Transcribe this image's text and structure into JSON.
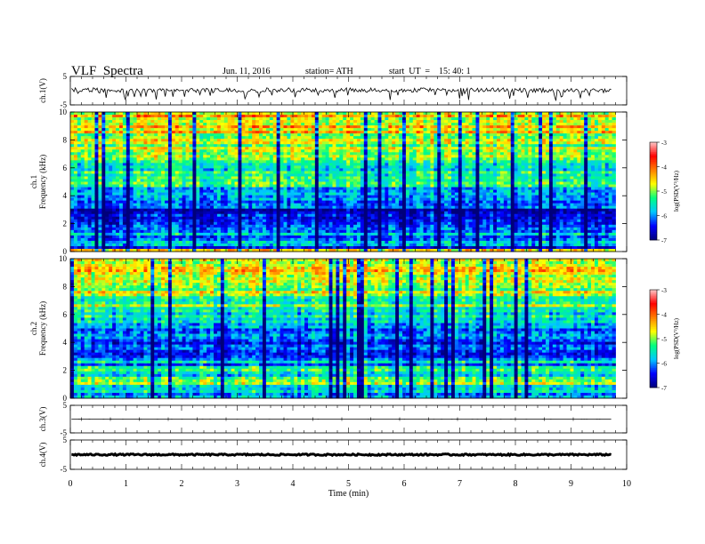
{
  "header": {
    "title": "VLF  Spectra",
    "date": "Jun. 11, 2016",
    "station": "station= ATH",
    "start": "start  UT  =    15: 40: 1"
  },
  "chart_data": {
    "type": "heatmap",
    "title": "VLF  Spectra",
    "xlabel": "Time  (min)",
    "xlim": [
      0,
      10
    ],
    "x_ticks": [
      "0",
      "1",
      "2",
      "3",
      "4",
      "5",
      "6",
      "7",
      "8",
      "9",
      "10"
    ],
    "data_end_min": 9.8,
    "panels": [
      {
        "id": "ch1-waveform",
        "kind": "line",
        "ylabel": "ch.1(V)",
        "ylim": [
          -5,
          5
        ],
        "y_ticks": [
          "5",
          "-5"
        ],
        "baseline": 0.2,
        "noise_amplitude": 0.8,
        "description_values": {
          "typical_min": -1.5,
          "typical_max": 1.5
        }
      },
      {
        "id": "ch1-spectrogram",
        "kind": "heatmap",
        "ylabel": "ch.1\nFrequency  (kHz)",
        "ylim": [
          0,
          10
        ],
        "y_ticks": [
          "0",
          "2",
          "4",
          "6",
          "8",
          "10"
        ],
        "profile_khz": [
          0,
          0.3,
          0.6,
          1,
          1.5,
          2,
          2.5,
          3,
          3.5,
          4,
          4.5,
          5,
          6,
          7,
          8,
          9,
          10
        ],
        "profile_logpsd": [
          -3.6,
          -6.4,
          -5.4,
          -6.0,
          -6.2,
          -6.4,
          -6.7,
          -6.5,
          -6.2,
          -6.0,
          -5.8,
          -5.6,
          -5.3,
          -5.0,
          -4.8,
          -4.6,
          -4.5
        ]
      },
      {
        "id": "ch2-spectrogram",
        "kind": "heatmap",
        "ylabel": "ch.2\nFrequency  (kHz)",
        "ylim": [
          0,
          10
        ],
        "y_ticks": [
          "0",
          "2",
          "4",
          "6",
          "8",
          "10"
        ],
        "profile_khz": [
          0,
          0.3,
          0.6,
          1,
          1.5,
          2,
          2.5,
          3,
          3.5,
          4,
          4.5,
          5,
          6,
          7,
          8,
          9,
          10
        ],
        "profile_logpsd": [
          -5.6,
          -6.3,
          -5.5,
          -5.2,
          -5.5,
          -5.6,
          -5.9,
          -6.2,
          -6.6,
          -6.2,
          -6.4,
          -5.7,
          -5.4,
          -5.1,
          -4.9,
          -4.7,
          -4.6
        ]
      },
      {
        "id": "ch3-waveform",
        "kind": "line",
        "ylabel": "ch.3(V)",
        "ylim": [
          -5,
          5
        ],
        "y_ticks": [
          "5",
          "-5"
        ],
        "baseline": 0.0,
        "noise_amplitude": 0.02
      },
      {
        "id": "ch4-waveform",
        "kind": "line",
        "ylabel": "ch.4(V)",
        "ylim": [
          -5,
          5
        ],
        "y_ticks": [
          "5",
          "-5"
        ],
        "baseline": 0.0,
        "noise_amplitude": 0.25
      }
    ],
    "colorbar": {
      "label": "log(PSD(V²/Hz)",
      "range": [
        -7,
        -3
      ],
      "ticks": [
        "-3",
        "-4",
        "-5",
        "-6",
        "-7"
      ],
      "colors": [
        "#00007a",
        "#0000ff",
        "#00c8ff",
        "#00ff80",
        "#ffff00",
        "#ff8000",
        "#ff0000",
        "#ffc8c8"
      ]
    }
  }
}
